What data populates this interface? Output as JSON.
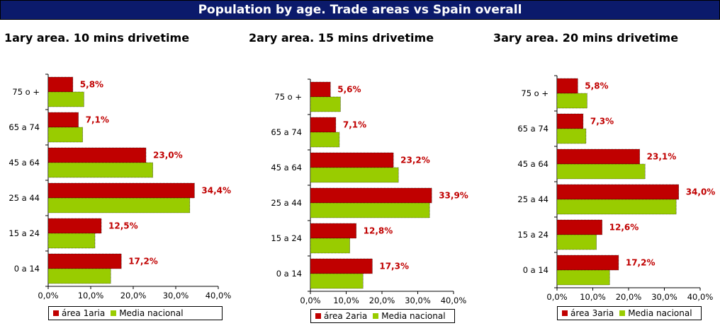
{
  "banner": {
    "title": "Population by age. Trade areas vs Spain overall"
  },
  "colors": {
    "area": "#c00000",
    "national": "#99cc00",
    "banner_bg": "#0b1a6b"
  },
  "chart_data": [
    {
      "type": "bar",
      "orientation": "horizontal",
      "title": "1ary area. 10 mins drivetime",
      "categories": [
        "75 o +",
        "65 a 74",
        "45 a 64",
        "25 a 44",
        "15 a 24",
        "0 a 14"
      ],
      "series": [
        {
          "name": "área 1aria",
          "values": [
            5.8,
            7.1,
            23.0,
            34.4,
            12.5,
            17.2
          ],
          "labels": [
            "5,8%",
            "7,1%",
            "23,0%",
            "34,4%",
            "12,5%",
            "17,2%"
          ]
        },
        {
          "name": "Media nacional",
          "values": [
            8.4,
            8.1,
            24.6,
            33.3,
            11.0,
            14.7
          ]
        }
      ],
      "xlim": [
        0,
        40
      ],
      "xticks": [
        "0,0%",
        "10,0%",
        "20,0%",
        "30,0%",
        "40,0%"
      ],
      "grid": false,
      "legend": "bottom"
    },
    {
      "type": "bar",
      "orientation": "horizontal",
      "title": "2ary area. 15 mins drivetime",
      "categories": [
        "75 o +",
        "65 a 74",
        "45 a 64",
        "25 a 44",
        "15 a 24",
        "0 a 14"
      ],
      "series": [
        {
          "name": "área 2aria",
          "values": [
            5.6,
            7.1,
            23.2,
            33.9,
            12.8,
            17.3
          ],
          "labels": [
            "5,6%",
            "7,1%",
            "23,2%",
            "33,9%",
            "12,8%",
            "17,3%"
          ]
        },
        {
          "name": "Media nacional",
          "values": [
            8.4,
            8.1,
            24.6,
            33.3,
            11.0,
            14.7
          ]
        }
      ],
      "xlim": [
        0,
        40
      ],
      "xticks": [
        "0,0%",
        "10,0%",
        "20,0%",
        "30,0%",
        "40,0%"
      ],
      "grid": false,
      "legend": "bottom"
    },
    {
      "type": "bar",
      "orientation": "horizontal",
      "title": "3ary area. 20 mins drivetime",
      "categories": [
        "75 o +",
        "65 a 74",
        "45 a 64",
        "25 a 44",
        "15 a 24",
        "0 a 14"
      ],
      "series": [
        {
          "name": "área 3aria",
          "values": [
            5.8,
            7.3,
            23.1,
            34.0,
            12.6,
            17.2
          ],
          "labels": [
            "5,8%",
            "7,3%",
            "23,1%",
            "34,0%",
            "12,6%",
            "17,2%"
          ]
        },
        {
          "name": "Media nacional",
          "values": [
            8.4,
            8.1,
            24.6,
            33.3,
            11.0,
            14.7
          ]
        }
      ],
      "xlim": [
        0,
        40
      ],
      "xticks": [
        "0,0%",
        "10,0%",
        "20,0%",
        "30,0%",
        "40,0%"
      ],
      "grid": false,
      "legend": "bottom"
    }
  ]
}
